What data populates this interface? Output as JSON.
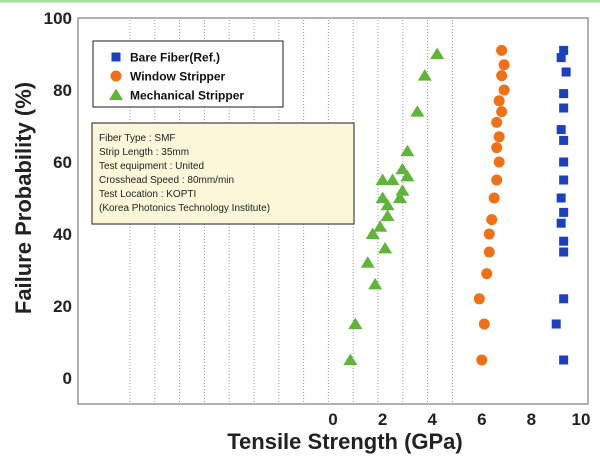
{
  "chart_data": {
    "type": "scatter",
    "title": "",
    "xlabel": "Tensile Strength (GPa)",
    "ylabel": "Failure Probability (%)",
    "xlim": [
      0,
      10
    ],
    "ylim": [
      0,
      100
    ],
    "x_ticks": [
      "0",
      "2",
      "4",
      "6",
      "8",
      "10"
    ],
    "y_ticks": [
      "0",
      "20",
      "40",
      "60",
      "80",
      "100"
    ],
    "grid": "vertical dotted",
    "legend_position": "top-left",
    "series": [
      {
        "name": "Bare Fiber(Ref.)",
        "marker": "square",
        "color": "#1a3fbf",
        "points": [
          [
            9.3,
            91
          ],
          [
            9.2,
            89
          ],
          [
            9.4,
            85
          ],
          [
            9.3,
            79
          ],
          [
            9.3,
            75
          ],
          [
            9.2,
            69
          ],
          [
            9.3,
            66
          ],
          [
            9.3,
            60
          ],
          [
            9.3,
            55
          ],
          [
            9.2,
            50
          ],
          [
            9.3,
            46
          ],
          [
            9.2,
            43
          ],
          [
            9.3,
            38
          ],
          [
            9.3,
            35
          ],
          [
            9.3,
            22
          ],
          [
            9.0,
            15
          ],
          [
            9.3,
            5
          ]
        ]
      },
      {
        "name": "Window Stripper",
        "marker": "circle",
        "color": "#f07018",
        "points": [
          [
            6.8,
            91
          ],
          [
            6.9,
            87
          ],
          [
            6.8,
            84
          ],
          [
            6.9,
            80
          ],
          [
            6.7,
            77
          ],
          [
            6.8,
            74
          ],
          [
            6.6,
            71
          ],
          [
            6.7,
            67
          ],
          [
            6.6,
            64
          ],
          [
            6.7,
            60
          ],
          [
            6.6,
            55
          ],
          [
            6.5,
            50
          ],
          [
            6.4,
            44
          ],
          [
            6.3,
            40
          ],
          [
            6.3,
            35
          ],
          [
            6.2,
            29
          ],
          [
            5.9,
            22
          ],
          [
            6.1,
            15
          ],
          [
            6.0,
            5
          ]
        ]
      },
      {
        "name": "Mechanical Stripper",
        "marker": "triangle",
        "color": "#5fb53a",
        "points": [
          [
            4.2,
            90
          ],
          [
            3.7,
            84
          ],
          [
            3.4,
            74
          ],
          [
            3.0,
            63
          ],
          [
            2.8,
            58
          ],
          [
            3.0,
            56
          ],
          [
            2.4,
            55
          ],
          [
            2.8,
            52
          ],
          [
            2.7,
            50
          ],
          [
            2.0,
            55
          ],
          [
            2.0,
            50
          ],
          [
            2.2,
            48
          ],
          [
            2.2,
            45
          ],
          [
            1.9,
            42
          ],
          [
            1.6,
            40
          ],
          [
            2.1,
            36
          ],
          [
            1.4,
            32
          ],
          [
            1.7,
            26
          ],
          [
            0.9,
            15
          ],
          [
            0.7,
            5
          ]
        ]
      }
    ],
    "info_box": [
      "Fiber Type : SMF",
      "Strip Length : 35mm",
      "Test equipment : United",
      "Crosshead Speed : 80mm/min",
      "Test Location : KOPTI",
      "(Korea Photonics Technology Institute)"
    ]
  }
}
